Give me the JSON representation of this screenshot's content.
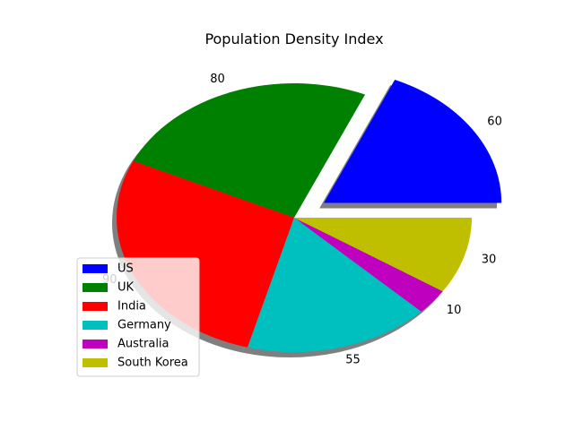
{
  "chart_data": {
    "type": "pie",
    "title": "Population Density Index",
    "categories": [
      "US",
      "UK",
      "India",
      "Germany",
      "Australia",
      "South Korea"
    ],
    "values": [
      60,
      80,
      90,
      55,
      10,
      30
    ],
    "colors": [
      "#0000ff",
      "#008000",
      "#ff0000",
      "#00bfbf",
      "#bf00bf",
      "#bfbf00"
    ],
    "exploded": [
      "US"
    ],
    "shadow": true,
    "start_angle": 0,
    "direction": "counterclockwise",
    "labels_show": "values",
    "legend": {
      "location": "lower-left",
      "entries": [
        "US",
        "UK",
        "India",
        "Germany",
        "Australia",
        "South Korea"
      ]
    }
  }
}
